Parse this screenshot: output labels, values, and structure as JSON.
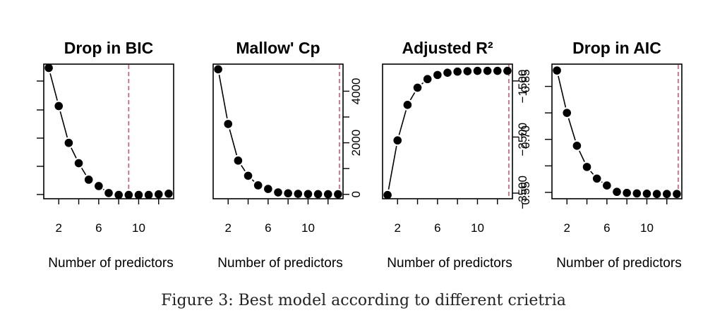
{
  "chart_data": [
    {
      "type": "scatter",
      "title": "Drop in BIC",
      "xlabel": "Number of predictors",
      "ylabel": "",
      "xticks": [
        "2",
        "6",
        "10"
      ],
      "yticks": [],
      "y_axis_side": "left",
      "xlim": [
        0.5,
        13.5
      ],
      "ylim": [
        -0.03,
        1.03
      ],
      "x": [
        1,
        2,
        3,
        4,
        5,
        6,
        7,
        8,
        9,
        10,
        11,
        12,
        13
      ],
      "y": [
        1.0,
        0.7,
        0.41,
        0.25,
        0.12,
        0.07,
        0.015,
        0.0,
        0.0,
        0.0,
        0.0,
        0.005,
        0.01
      ],
      "best_model_line": 9,
      "line_color": "#e0546b"
    },
    {
      "type": "scatter",
      "title": "Mallow' Cp",
      "xlabel": "Number of predictors",
      "ylabel": "",
      "xticks": [
        "2",
        "6",
        "10"
      ],
      "yticks": [
        "0",
        "2000",
        "4000"
      ],
      "y_axis_side": "right",
      "xlim": [
        0.5,
        13.5
      ],
      "ylim": [
        -170,
        5050
      ],
      "x": [
        1,
        2,
        3,
        4,
        5,
        6,
        7,
        8,
        9,
        10,
        11,
        12,
        13
      ],
      "y": [
        4850,
        2730,
        1310,
        720,
        350,
        210,
        75,
        40,
        20,
        12,
        8,
        5,
        5
      ],
      "best_model_line": 13,
      "line_color": "#e0546b"
    },
    {
      "type": "scatter",
      "title": "Adjusted R²",
      "xlabel": "Number of predictors",
      "ylabel": "",
      "xticks": [
        "2",
        "6",
        "10"
      ],
      "yticks": [
        "0.55",
        "0.70",
        "0.85"
      ],
      "y_axis_side": "right",
      "xlim": [
        0.5,
        13.5
      ],
      "ylim": [
        0.535,
        0.895
      ],
      "x": [
        1,
        2,
        3,
        4,
        5,
        6,
        7,
        8,
        9,
        10,
        11,
        12,
        13
      ],
      "y": [
        0.545,
        0.691,
        0.786,
        0.832,
        0.855,
        0.866,
        0.872,
        0.875,
        0.876,
        0.877,
        0.877,
        0.877,
        0.877
      ],
      "best_model_line": 13,
      "line_color": "#e0546b"
    },
    {
      "type": "scatter",
      "title": "Drop in AIC",
      "xlabel": "Number of predictors",
      "ylabel": "",
      "xticks": [
        "2",
        "6",
        "10"
      ],
      "yticks": [
        "−1500",
        "−2500",
        "−3500"
      ],
      "ytick_values": [
        -1500,
        -2500,
        -3500
      ],
      "y_axis_side": "left",
      "xlim": [
        0.5,
        13.5
      ],
      "ylim": [
        -3620,
        -1080
      ],
      "x": [
        1,
        2,
        3,
        4,
        5,
        6,
        7,
        8,
        9,
        10,
        11,
        12,
        13
      ],
      "y": [
        -1200,
        -2000,
        -2620,
        -3020,
        -3240,
        -3370,
        -3490,
        -3510,
        -3520,
        -3525,
        -3530,
        -3530,
        -3530
      ],
      "best_model_line": 13,
      "line_color": "#e0546b"
    }
  ],
  "caption": "Figure 3: Best model according to different crietria"
}
